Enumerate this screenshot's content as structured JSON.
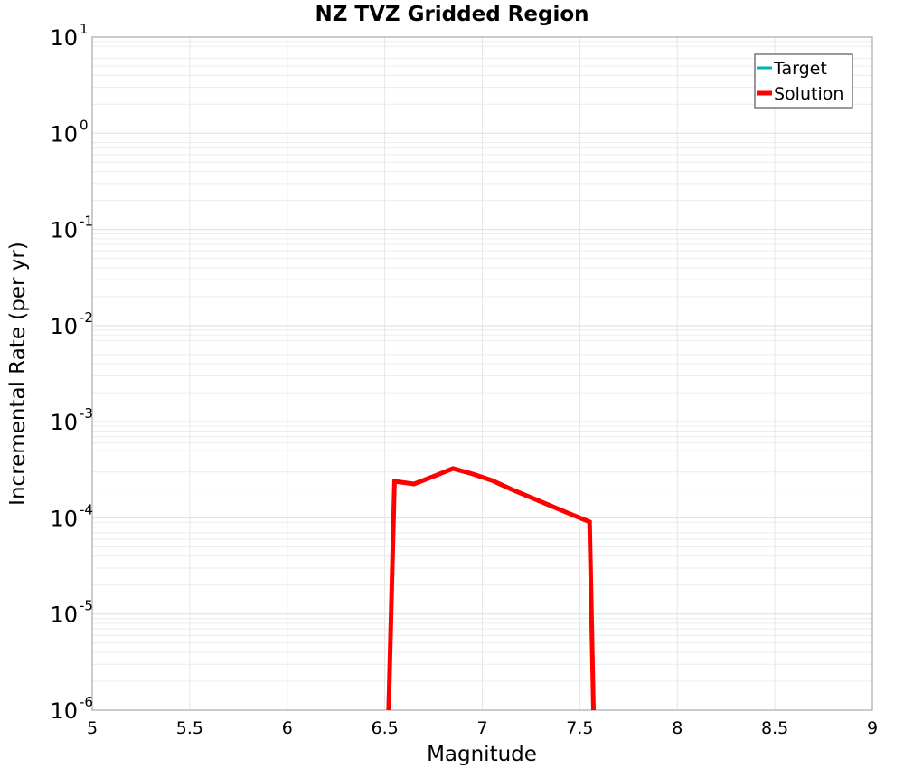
{
  "chart_data": {
    "type": "line",
    "title": "NZ TVZ Gridded Region",
    "xlabel": "Magnitude",
    "ylabel": "Incremental Rate (per yr)",
    "xlim": [
      5,
      9
    ],
    "ylim": [
      1e-06,
      10
    ],
    "yscale": "log",
    "grid": true,
    "legend_position": "top-right",
    "x_ticks": [
      "5",
      "5.5",
      "6",
      "6.5",
      "7",
      "7.5",
      "8",
      "8.5",
      "9"
    ],
    "y_ticks": [
      {
        "base": "10",
        "exp": "1"
      },
      {
        "base": "10",
        "exp": "0"
      },
      {
        "base": "10",
        "exp": "-1"
      },
      {
        "base": "10",
        "exp": "-2"
      },
      {
        "base": "10",
        "exp": "-3"
      },
      {
        "base": "10",
        "exp": "-4"
      },
      {
        "base": "10",
        "exp": "-5"
      },
      {
        "base": "10",
        "exp": "-6"
      }
    ],
    "series": [
      {
        "name": "Target",
        "color": "#00b4b4",
        "x": [],
        "values": []
      },
      {
        "name": "Solution",
        "color": "#ff0000",
        "x": [
          6.52,
          6.55,
          6.65,
          6.75,
          6.85,
          6.95,
          7.05,
          7.15,
          7.25,
          7.35,
          7.45,
          7.55,
          7.57
        ],
        "values": [
          1e-06,
          0.00024,
          0.000225,
          0.00027,
          0.000326,
          0.000286,
          0.000245,
          0.000198,
          0.000163,
          0.000134,
          0.00011,
          9.1e-05,
          1e-06
        ]
      }
    ]
  }
}
